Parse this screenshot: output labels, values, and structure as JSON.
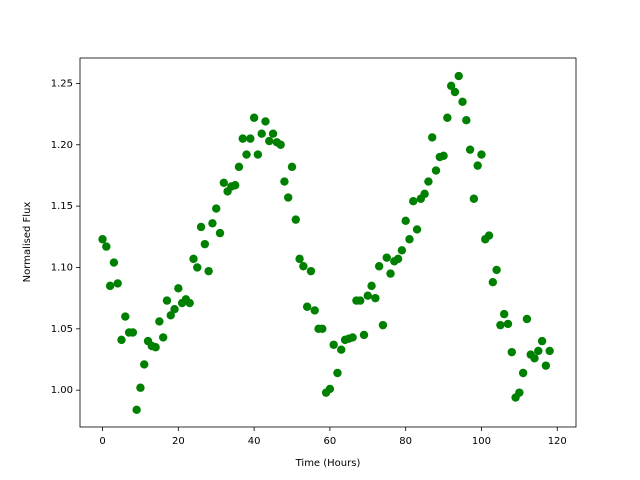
{
  "chart_data": {
    "type": "scatter",
    "xlabel": "Time (Hours)",
    "ylabel": "Normalised Flux",
    "color": "#008000",
    "x": [
      0,
      1,
      2,
      3,
      4,
      5,
      6,
      7,
      8,
      9,
      10,
      11,
      12,
      13,
      14,
      15,
      16,
      17,
      18,
      19,
      20,
      21,
      22,
      23,
      24,
      25,
      26,
      27,
      28,
      29,
      30,
      31,
      32,
      33,
      34,
      35,
      36,
      37,
      38,
      39,
      40,
      41,
      42,
      43,
      44,
      45,
      46,
      47,
      48,
      49,
      50,
      51,
      52,
      53,
      54,
      55,
      56,
      57,
      58,
      59,
      60,
      61,
      62,
      63,
      64,
      65,
      66,
      67,
      68,
      69,
      70,
      71,
      72,
      73,
      74,
      75,
      76,
      77,
      78,
      79,
      80,
      81,
      82,
      83,
      84,
      85,
      86,
      87,
      88,
      89,
      90,
      91,
      92,
      93,
      94,
      95,
      96,
      97,
      98,
      99,
      100,
      101,
      102,
      103,
      104,
      105,
      106,
      107,
      108,
      109,
      110,
      111,
      112,
      113,
      114,
      115,
      116,
      117,
      118
    ],
    "values": [
      1.123,
      1.117,
      1.085,
      1.104,
      1.087,
      1.041,
      1.06,
      1.047,
      1.047,
      0.984,
      1.002,
      1.021,
      1.04,
      1.036,
      1.035,
      1.056,
      1.043,
      1.073,
      1.061,
      1.066,
      1.083,
      1.071,
      1.074,
      1.071,
      1.107,
      1.1,
      1.133,
      1.119,
      1.097,
      1.136,
      1.148,
      1.128,
      1.169,
      1.162,
      1.166,
      1.167,
      1.182,
      1.205,
      1.192,
      1.205,
      1.222,
      1.192,
      1.209,
      1.219,
      1.203,
      1.209,
      1.202,
      1.2,
      1.17,
      1.157,
      1.182,
      1.139,
      1.107,
      1.101,
      1.068,
      1.097,
      1.065,
      1.05,
      1.05,
      0.998,
      1.001,
      1.037,
      1.014,
      1.033,
      1.041,
      1.042,
      1.043,
      1.073,
      1.073,
      1.045,
      1.077,
      1.085,
      1.075,
      1.101,
      1.053,
      1.108,
      1.095,
      1.105,
      1.107,
      1.114,
      1.138,
      1.123,
      1.154,
      1.131,
      1.156,
      1.16,
      1.17,
      1.206,
      1.179,
      1.19,
      1.191,
      1.222,
      1.248,
      1.243,
      1.256,
      1.235,
      1.22,
      1.196,
      1.156,
      1.183,
      1.192,
      1.123,
      1.126,
      1.088,
      1.098,
      1.053,
      1.062,
      1.054,
      1.031,
      0.994,
      0.998,
      1.014,
      1.058,
      1.029,
      1.026,
      1.032,
      1.04,
      1.02,
      1.032
    ],
    "xlim": [
      -5.95,
      124.95
    ],
    "xticks": [
      0,
      20,
      40,
      60,
      80,
      100,
      120
    ],
    "ylim": [
      0.97,
      1.2707
    ],
    "yticks": [
      {
        "value": 1.0,
        "label": "1.00"
      },
      1.05,
      {
        "value": 1.1,
        "label": "1.10"
      },
      1.15,
      {
        "value": 1.2,
        "label": "1.20"
      },
      1.25
    ]
  }
}
